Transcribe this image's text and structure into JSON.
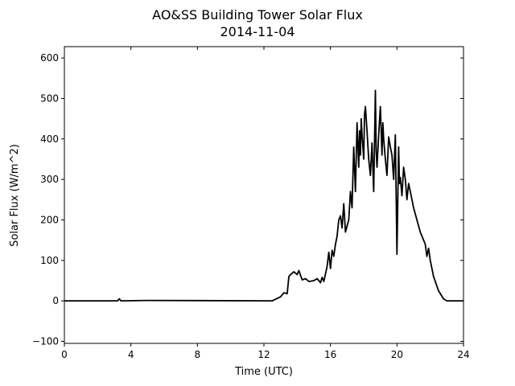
{
  "chart_data": {
    "type": "line",
    "title": "AO&SS Building Tower Solar Flux",
    "subtitle": "2014-11-04",
    "xlabel": "Time (UTC)",
    "ylabel": "Solar Flux (W/m^2)",
    "xlim": [
      0,
      24
    ],
    "ylim": [
      -105,
      628
    ],
    "xticks": [
      0,
      4,
      8,
      12,
      16,
      20,
      24
    ],
    "yticks": [
      -100,
      0,
      100,
      200,
      300,
      400,
      500,
      600
    ],
    "grid": false,
    "line_color": "#000000",
    "series": [
      {
        "x": [
          0,
          3.2,
          3.3,
          3.4,
          5,
          12.5,
          13.0,
          13.2,
          13.4,
          13.5,
          13.6,
          13.8,
          14.0,
          14.1,
          14.3,
          14.5,
          14.7,
          15.0,
          15.2,
          15.4,
          15.5,
          15.6,
          15.8,
          15.9,
          16.0,
          16.1,
          16.2,
          16.3,
          16.4,
          16.5,
          16.6,
          16.7,
          16.8,
          16.9,
          17.0,
          17.1,
          17.2,
          17.3,
          17.4,
          17.5,
          17.6,
          17.7,
          17.75,
          17.8,
          17.85,
          17.9,
          18.0,
          18.05,
          18.1,
          18.2,
          18.3,
          18.4,
          18.5,
          18.6,
          18.7,
          18.75,
          18.8,
          18.9,
          19.0,
          19.1,
          19.15,
          19.2,
          19.3,
          19.4,
          19.5,
          19.6,
          19.7,
          19.8,
          19.9,
          20.0,
          20.1,
          20.15,
          20.2,
          20.3,
          20.4,
          20.5,
          20.6,
          20.7,
          20.8,
          21.0,
          21.2,
          21.4,
          21.7,
          21.8,
          21.9,
          22.0,
          22.2,
          22.5,
          22.8,
          23.0,
          24.0
        ],
        "y": [
          0,
          0,
          5,
          0,
          1,
          0,
          10,
          20,
          18,
          60,
          65,
          72,
          65,
          75,
          52,
          55,
          48,
          50,
          55,
          45,
          58,
          48,
          85,
          120,
          80,
          125,
          110,
          140,
          160,
          200,
          210,
          180,
          240,
          170,
          185,
          200,
          270,
          230,
          380,
          270,
          440,
          330,
          420,
          360,
          450,
          410,
          350,
          460,
          480,
          420,
          350,
          310,
          390,
          270,
          520,
          370,
          330,
          410,
          480,
          360,
          440,
          400,
          350,
          310,
          405,
          380,
          360,
          300,
          410,
          115,
          380,
          290,
          305,
          260,
          330,
          300,
          250,
          290,
          270,
          230,
          200,
          170,
          140,
          110,
          130,
          100,
          60,
          25,
          5,
          0,
          0
        ]
      }
    ]
  }
}
